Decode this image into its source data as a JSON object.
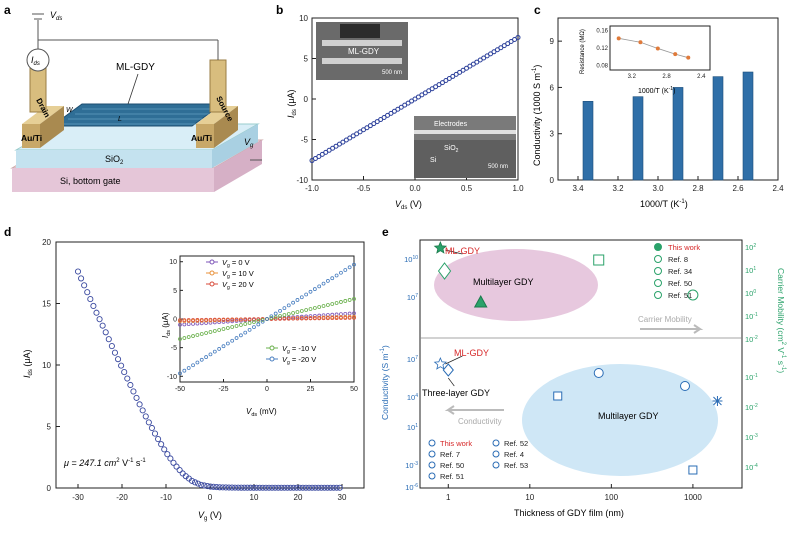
{
  "panel_labels": {
    "a": "a",
    "b": "b",
    "c": "c",
    "d": "d",
    "e": "e"
  },
  "panel_a": {
    "vds_label": "V",
    "vds_sub": "ds",
    "ids_label": "I",
    "ids_sub": "ds",
    "material": "ML-GDY",
    "drain": "Drain",
    "source": "Source",
    "contact_left": "Au/Ti",
    "contact_right": "Au/Ti",
    "w_label": "W",
    "l_label": "L",
    "oxide": "SiO",
    "oxide_sub": "2",
    "substrate": "Si, bottom gate",
    "vg_label": "V",
    "vg_sub": "g",
    "colors": {
      "substrate": "#e8c8d8",
      "oxide": "#c8e4f0",
      "film": "#3a7fa8",
      "contact": "#c8a86a"
    }
  },
  "chart_data": [
    {
      "id": "b",
      "type": "line",
      "xlabel": "V",
      "xlabel_sub": "ds",
      "xlabel_unit": " (V)",
      "ylabel": "I",
      "ylabel_sub": "ds",
      "ylabel_unit": " (μA)",
      "xlim": [
        -1,
        1
      ],
      "ylim": [
        -10,
        10
      ],
      "xticks": [
        "-1.0",
        "-0.5",
        "0.0",
        "0.5",
        "1.0"
      ],
      "xtick_vals": [
        -1,
        -0.5,
        0,
        0.5,
        1
      ],
      "yticks": [
        "-10",
        "-5",
        "0",
        "5",
        "10"
      ],
      "ytick_vals": [
        -10,
        -5,
        0,
        5,
        10
      ],
      "series": [
        {
          "x": [
            -1,
            -0.8,
            -0.6,
            -0.4,
            -0.2,
            0,
            0.2,
            0.4,
            0.6,
            0.8,
            1
          ],
          "y": [
            -7.6,
            -6.1,
            -4.6,
            -3.0,
            -1.5,
            0,
            1.5,
            3.0,
            4.6,
            6.1,
            7.6
          ],
          "color": "#2b3f9a"
        }
      ],
      "inset_top": {
        "label": "ML-GDY",
        "scale": "500 nm"
      },
      "inset_bottom": {
        "electrodes": "Electrodes",
        "oxide": "SiO",
        "oxide_sub": "2",
        "si": "Si",
        "scale": "500 nm"
      }
    },
    {
      "id": "c",
      "type": "bar",
      "xlabel": "1000/T (K",
      "xlabel_sup": "-1",
      "xlabel_end": ")",
      "ylabel": "Conductivity (1000 S m",
      "ylabel_sup": "-1",
      "ylabel_end": ")",
      "xlim": [
        3.5,
        2.4
      ],
      "ylim": [
        0,
        10.5
      ],
      "xticks": [
        "3.4",
        "3.2",
        "3.0",
        "2.8",
        "2.6",
        "2.4"
      ],
      "xtick_vals": [
        3.4,
        3.2,
        3.0,
        2.8,
        2.6,
        2.4
      ],
      "yticks": [
        "0",
        "3",
        "6",
        "9"
      ],
      "ytick_vals": [
        0,
        3,
        6,
        9
      ],
      "bars": [
        {
          "x": 3.35,
          "value": 5.1
        },
        {
          "x": 3.1,
          "value": 5.4
        },
        {
          "x": 2.9,
          "value": 6.0
        },
        {
          "x": 2.7,
          "value": 6.7
        },
        {
          "x": 2.55,
          "value": 7.0
        }
      ],
      "inset": {
        "xlabel": "1000/T (K",
        "xlabel_sup": "-1",
        "xlabel_end": ")",
        "ylabel": "Resistance (MΩ)",
        "xticks": [
          "3.2",
          "2.8",
          "2.4"
        ],
        "xtick_vals": [
          3.2,
          2.8,
          2.4
        ],
        "yticks": [
          "0.08",
          "0.12",
          "0.16"
        ],
        "ytick_vals": [
          0.08,
          0.12,
          0.16
        ],
        "xlim": [
          3.45,
          2.3
        ],
        "ylim": [
          0.07,
          0.17
        ],
        "x": [
          3.35,
          3.1,
          2.9,
          2.7,
          2.55
        ],
        "y": [
          0.142,
          0.133,
          0.119,
          0.106,
          0.098
        ],
        "color": "#e07a3a"
      }
    },
    {
      "id": "d",
      "type": "scatter",
      "xlabel": "V",
      "xlabel_sub": "g",
      "xlabel_unit": " (V)",
      "ylabel": "I",
      "ylabel_sub": "ds",
      "ylabel_unit": " (μA)",
      "xlim": [
        -35,
        35
      ],
      "ylim": [
        0,
        20
      ],
      "xticks": [
        "-30",
        "-20",
        "-10",
        "0",
        "10",
        "20",
        "30"
      ],
      "xtick_vals": [
        -30,
        -20,
        -10,
        0,
        10,
        20,
        30
      ],
      "yticks": [
        "0",
        "5",
        "10",
        "15",
        "20"
      ],
      "ytick_vals": [
        0,
        5,
        10,
        15,
        20
      ],
      "mobility": "μ = 247.1 cm",
      "mobility_sup": "2",
      "mobility_end": " V",
      "mobility_sup2": "-1",
      "mobility_end2": " s",
      "mobility_sup3": "-1",
      "curve": {
        "x": [
          -30,
          -28,
          -26,
          -24,
          -22,
          -20,
          -18,
          -16,
          -14,
          -12,
          -10,
          -8,
          -6,
          -4,
          -2,
          0,
          2,
          4,
          6,
          10,
          15,
          20,
          25,
          30
        ],
        "y": [
          17.6,
          16.0,
          14.4,
          12.9,
          11.3,
          9.8,
          8.3,
          6.8,
          5.4,
          4.1,
          2.9,
          1.9,
          1.1,
          0.55,
          0.25,
          0.12,
          0.06,
          0.04,
          0.03,
          0.02,
          0.02,
          0.02,
          0.02,
          0.02
        ],
        "color": "#3b4aa0"
      },
      "inset": {
        "xlabel": "V",
        "xlabel_sub": "ds",
        "xlabel_unit": " (mV)",
        "ylabel": "I",
        "ylabel_sub": "ds",
        "ylabel_unit": " (μA)",
        "xlim": [
          -50,
          50
        ],
        "ylim": [
          -11,
          11
        ],
        "xticks": [
          "-50",
          "-25",
          "0",
          "25",
          "50"
        ],
        "xtick_vals": [
          -50,
          -25,
          0,
          25,
          50
        ],
        "yticks": [
          "-10",
          "-5",
          "0",
          "5",
          "10"
        ],
        "ytick_vals": [
          -10,
          -5,
          0,
          5,
          10
        ],
        "series": [
          {
            "name": "V",
            "sub": "g",
            "rest": " = 0 V",
            "color": "#7d55b8",
            "slope": 0.02
          },
          {
            "name": "V",
            "sub": "g",
            "rest": " = 10 V",
            "color": "#e8903a",
            "slope": 0.008
          },
          {
            "name": "V",
            "sub": "g",
            "rest": " = 20 V",
            "color": "#d84a3a",
            "slope": 0.004
          },
          {
            "name": "V",
            "sub": "g",
            "rest": " = -10 V",
            "color": "#6ab04c",
            "slope": 0.07
          },
          {
            "name": "V",
            "sub": "g",
            "rest": " = -20 V",
            "color": "#4a7fc0",
            "slope": 0.19
          }
        ]
      }
    },
    {
      "id": "e",
      "type": "scatter",
      "xlabel": "Thickness of GDY film (nm)",
      "ylabel_left": "Conductivity (S m",
      "ylabel_left_sup": "-1",
      "ylabel_left_end": ")",
      "ylabel_right": "Carrier Mobility (cm",
      "ylabel_right_sup": "2",
      "ylabel_right_mid": " V",
      "ylabel_right_sup2": "-1",
      "ylabel_right_end": " s",
      "ylabel_right_sup3": "-1",
      "ylabel_right_close": ")",
      "xticks": [
        "1",
        "10",
        "100",
        "1000"
      ],
      "xtick_vals": [
        1,
        10,
        100,
        1000
      ],
      "xlim_log": [
        0.45,
        4000
      ],
      "left_ticks": [
        "10",
        "10",
        "10",
        "10"
      ],
      "left_exps": [
        "-3",
        "1",
        "4",
        "7"
      ],
      "left_ticks_top": [
        "10",
        "10"
      ],
      "left_exps_top": [
        "10",
        "7"
      ],
      "left_bottom": "10",
      "left_bottom_exp": "-6",
      "right_ticks": [
        "10",
        "10",
        "10",
        "10",
        "10"
      ],
      "right_exps": [
        "2",
        "1",
        "0",
        "-1",
        "-2"
      ],
      "right_ticks_low": [
        "10",
        "10",
        "10",
        "10"
      ],
      "right_exps_low": [
        "-1",
        "-2",
        "-3",
        "-4"
      ],
      "top_labels": {
        "ml_gdy": "ML-GDY",
        "multilayer": "Multilayer GDY",
        "carrier": "Carrier Mobility"
      },
      "bottom_labels": {
        "ml_gdy": "ML-GDY",
        "three_layer": "Three-layer GDY",
        "multilayer": "Multilayer GDY",
        "conductivity": "Conductivity"
      },
      "legend_top": [
        {
          "label": "This work",
          "marker": "star",
          "color": "#d62728"
        },
        {
          "label": "Ref. 8",
          "marker": "diamond-half",
          "color": "#222"
        },
        {
          "label": "Ref. 34",
          "marker": "triangle-half",
          "color": "#222"
        },
        {
          "label": "Ref. 50",
          "marker": "square-half",
          "color": "#222"
        },
        {
          "label": "Ref. 51",
          "marker": "circle-half",
          "color": "#222"
        }
      ],
      "legend_bottom_left": [
        {
          "label": "This work",
          "marker": "star-open",
          "color": "#d62728"
        },
        {
          "label": "Ref. 7",
          "marker": "diamond-open",
          "color": "#222"
        },
        {
          "label": "Ref. 50",
          "marker": "square-cross",
          "color": "#222"
        },
        {
          "label": "Ref. 51",
          "marker": "circle-line",
          "color": "#222"
        }
      ],
      "legend_bottom_right": [
        {
          "label": "Ref. 52",
          "marker": "x-circle",
          "color": "#222"
        },
        {
          "label": "Ref. 4",
          "marker": "x-square",
          "color": "#222"
        },
        {
          "label": "Ref. 53",
          "marker": "asterisk",
          "color": "#222"
        }
      ],
      "colors": {
        "pink": "#e7c8de",
        "blue": "#cfe7f6",
        "green": "#2aa26a",
        "axis_blue": "#2a6cb5"
      }
    }
  ]
}
